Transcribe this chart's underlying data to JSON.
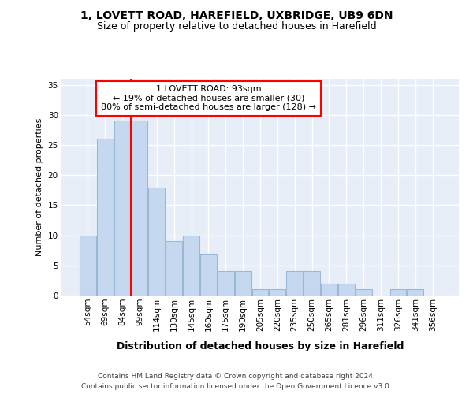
{
  "title_line1": "1, LOVETT ROAD, HAREFIELD, UXBRIDGE, UB9 6DN",
  "title_line2": "Size of property relative to detached houses in Harefield",
  "xlabel": "Distribution of detached houses by size in Harefield",
  "ylabel": "Number of detached properties",
  "categories": [
    "54sqm",
    "69sqm",
    "84sqm",
    "99sqm",
    "114sqm",
    "130sqm",
    "145sqm",
    "160sqm",
    "175sqm",
    "190sqm",
    "205sqm",
    "220sqm",
    "235sqm",
    "250sqm",
    "265sqm",
    "281sqm",
    "296sqm",
    "311sqm",
    "326sqm",
    "341sqm",
    "356sqm"
  ],
  "values": [
    10,
    26,
    29,
    29,
    18,
    9,
    10,
    7,
    4,
    4,
    1,
    1,
    4,
    4,
    2,
    2,
    1,
    0,
    1,
    1,
    0
  ],
  "bar_color": "#c5d8f0",
  "bar_edge_color": "#9ab8d8",
  "annotation_text_line1": "1 LOVETT ROAD: 93sqm",
  "annotation_text_line2": "← 19% of detached houses are smaller (30)",
  "annotation_text_line3": "80% of semi-detached houses are larger (128) →",
  "annotation_box_color": "white",
  "annotation_box_edge_color": "red",
  "vline_color": "red",
  "vline_x": 2.5,
  "ylim": [
    0,
    36
  ],
  "yticks": [
    0,
    5,
    10,
    15,
    20,
    25,
    30,
    35
  ],
  "background_color": "#e8eef8",
  "grid_color": "white",
  "footer_line1": "Contains HM Land Registry data © Crown copyright and database right 2024.",
  "footer_line2": "Contains public sector information licensed under the Open Government Licence v3.0.",
  "title_fontsize": 10,
  "subtitle_fontsize": 9,
  "axis_label_fontsize": 9,
  "ylabel_fontsize": 8,
  "tick_fontsize": 7.5,
  "annotation_fontsize": 8,
  "footer_fontsize": 6.5
}
